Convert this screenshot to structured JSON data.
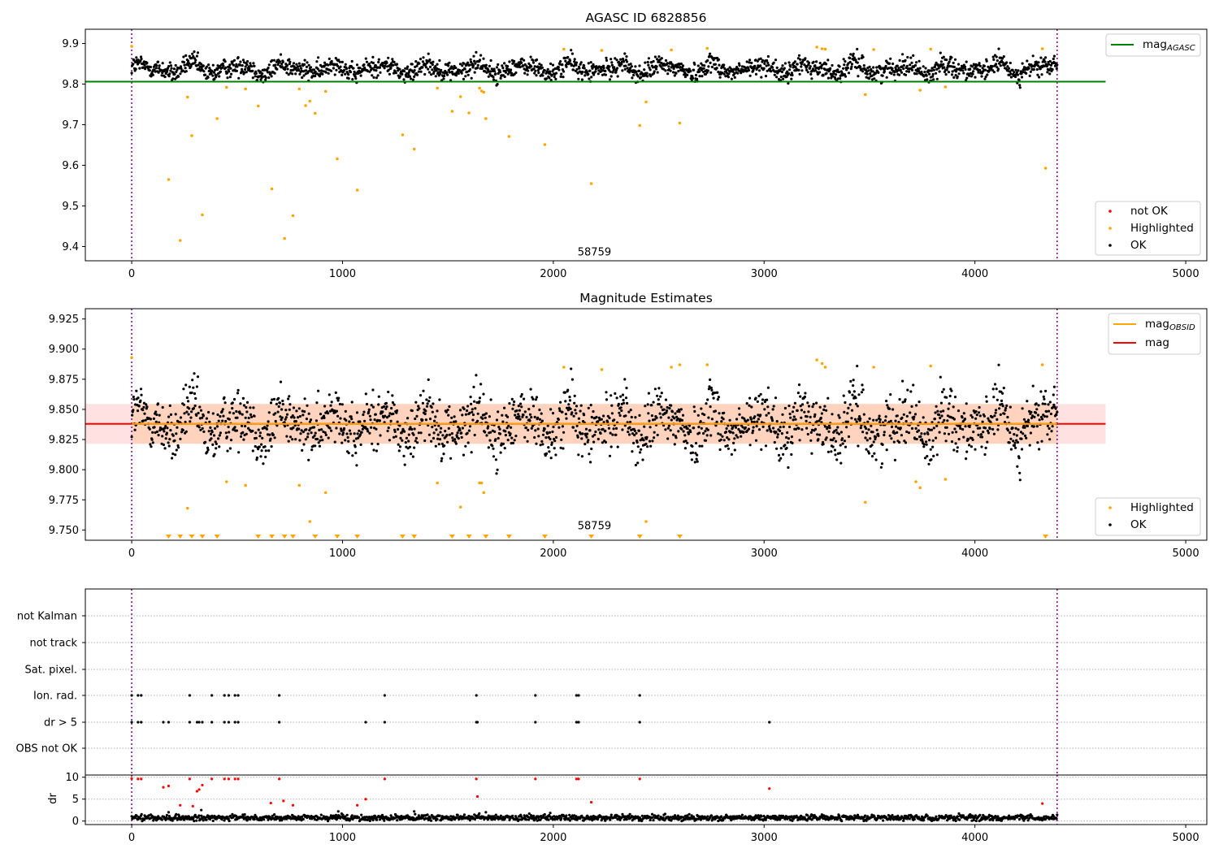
{
  "figure": {
    "colors": {
      "ok": "#000000",
      "highlighted": "#ffa500",
      "not_ok": "#ff0000",
      "agasc_line": "#008000",
      "mag_line": "#ff0000",
      "obs_line": "#ffa500",
      "band_mag": "#ffaaaa",
      "band_obs": "#ffc8a0",
      "obs_boundary": "#800080"
    },
    "obs_boundaries_x": [
      0,
      4390
    ],
    "obs_label": "58759"
  },
  "chart_data": [
    {
      "id": "top",
      "type": "scatter",
      "title": "AGASC ID 6828856",
      "xlim": [
        -220,
        5100
      ],
      "ylim": [
        9.365,
        9.935
      ],
      "xticks": [
        0,
        1000,
        2000,
        3000,
        4000,
        5000
      ],
      "yticks": [
        9.4,
        9.5,
        9.6,
        9.7,
        9.8,
        9.9
      ],
      "ytick_labels": [
        "9.4",
        "9.5",
        "9.6",
        "9.7",
        "9.8",
        "9.9"
      ],
      "lines": [
        {
          "name": "mag_AGASC",
          "label_base": "mag",
          "label_sub": "AGASC",
          "y": 9.806,
          "x_range": [
            -220,
            4620
          ],
          "color": "#008000"
        }
      ],
      "series": [
        {
          "name": "not OK",
          "color": "#ff0000",
          "points": []
        },
        {
          "name": "Highlighted",
          "color": "#ffa500",
          "points": [
            [
              0,
              9.893
            ],
            [
              175,
              9.565
            ],
            [
              230,
              9.415
            ],
            [
              265,
              9.768
            ],
            [
              285,
              9.673
            ],
            [
              335,
              9.478
            ],
            [
              405,
              9.715
            ],
            [
              450,
              9.792
            ],
            [
              540,
              9.788
            ],
            [
              600,
              9.746
            ],
            [
              665,
              9.542
            ],
            [
              725,
              9.42
            ],
            [
              765,
              9.476
            ],
            [
              795,
              9.788
            ],
            [
              825,
              9.747
            ],
            [
              845,
              9.758
            ],
            [
              870,
              9.728
            ],
            [
              920,
              9.782
            ],
            [
              975,
              9.616
            ],
            [
              1070,
              9.539
            ],
            [
              1285,
              9.675
            ],
            [
              1340,
              9.64
            ],
            [
              1450,
              9.79
            ],
            [
              1520,
              9.733
            ],
            [
              1560,
              9.769
            ],
            [
              1600,
              9.729
            ],
            [
              1650,
              9.79
            ],
            [
              1660,
              9.783
            ],
            [
              1670,
              9.78
            ],
            [
              1680,
              9.715
            ],
            [
              1790,
              9.671
            ],
            [
              1960,
              9.651
            ],
            [
              2050,
              9.886
            ],
            [
              2180,
              9.555
            ],
            [
              2230,
              9.883
            ],
            [
              2410,
              9.698
            ],
            [
              2440,
              9.756
            ],
            [
              2560,
              9.884
            ],
            [
              2600,
              9.704
            ],
            [
              2730,
              9.888
            ],
            [
              3250,
              9.891
            ],
            [
              3275,
              9.887
            ],
            [
              3290,
              9.886
            ],
            [
              3480,
              9.774
            ],
            [
              3520,
              9.885
            ],
            [
              3740,
              9.785
            ],
            [
              3790,
              9.886
            ],
            [
              3860,
              9.793
            ],
            [
              4320,
              9.887
            ],
            [
              4335,
              9.593
            ]
          ]
        },
        {
          "name": "OK",
          "color": "#000000",
          "points": []
        }
      ],
      "ok_trace": {
        "x_range": [
          0,
          4390
        ],
        "count": 2000,
        "baseline": 9.838,
        "wave_amplitude": 0.016,
        "noise": 0.012,
        "note_reading": "dense band of OK points between about 9.80 and 9.88"
      },
      "annotations": [
        {
          "text": "58759",
          "x": 2195,
          "y": 9.378
        }
      ],
      "legends": [
        {
          "entries": [
            "mag_AGASC"
          ],
          "placement": "top-right"
        },
        {
          "entries": [
            "not OK",
            "Highlighted",
            "OK"
          ],
          "placement": "bottom-right"
        }
      ]
    },
    {
      "id": "middle",
      "type": "scatter",
      "title": "Magnitude Estimates",
      "xlim": [
        -220,
        5100
      ],
      "ylim": [
        9.7415,
        9.9335
      ],
      "xticks": [
        0,
        1000,
        2000,
        3000,
        4000,
        5000
      ],
      "yticks": [
        9.75,
        9.775,
        9.8,
        9.825,
        9.85,
        9.875,
        9.9,
        9.925
      ],
      "ytick_labels": [
        "9.750",
        "9.775",
        "9.800",
        "9.825",
        "9.850",
        "9.875",
        "9.900",
        "9.925"
      ],
      "lines": [
        {
          "name": "mag_OBSID",
          "label_base": "mag",
          "label_sub": "OBSID",
          "y": 9.838,
          "x_range": [
            0,
            4390
          ],
          "color": "#ffa500"
        },
        {
          "name": "mag",
          "label_base": "mag",
          "label_sub": "",
          "y": 9.838,
          "x_range": [
            -220,
            4620
          ],
          "color": "#ff0000"
        }
      ],
      "bands": [
        {
          "y_range": [
            9.8215,
            9.8545
          ],
          "x_range": [
            -220,
            4620
          ],
          "color": "#ffaaaa",
          "opacity": 0.35
        },
        {
          "y_range": [
            9.8215,
            9.8545
          ],
          "x_range": [
            0,
            4390
          ],
          "color": "#ffc8a0",
          "opacity": 0.55
        }
      ],
      "series": [
        {
          "name": "Highlighted",
          "color": "#ffa500",
          "points": [
            [
              0,
              9.893
            ],
            [
              265,
              9.768
            ],
            [
              450,
              9.79
            ],
            [
              540,
              9.787
            ],
            [
              795,
              9.787
            ],
            [
              845,
              9.757
            ],
            [
              920,
              9.781
            ],
            [
              1450,
              9.789
            ],
            [
              1560,
              9.769
            ],
            [
              1650,
              9.789
            ],
            [
              1660,
              9.789
            ],
            [
              1670,
              9.781
            ],
            [
              2050,
              9.885
            ],
            [
              2230,
              9.883
            ],
            [
              2440,
              9.757
            ],
            [
              2560,
              9.885
            ],
            [
              2600,
              9.887
            ],
            [
              2730,
              9.887
            ],
            [
              3250,
              9.891
            ],
            [
              3275,
              9.888
            ],
            [
              3290,
              9.885
            ],
            [
              3480,
              9.773
            ],
            [
              3520,
              9.885
            ],
            [
              3720,
              9.79
            ],
            [
              3740,
              9.785
            ],
            [
              3790,
              9.886
            ],
            [
              3860,
              9.792
            ],
            [
              4320,
              9.887
            ]
          ]
        },
        {
          "name": "OK",
          "color": "#000000",
          "points": []
        }
      ],
      "clipped_below_x": [
        175,
        230,
        285,
        335,
        405,
        600,
        665,
        725,
        765,
        870,
        975,
        1070,
        1285,
        1340,
        1520,
        1600,
        1680,
        1790,
        1960,
        2180,
        2410,
        2600,
        4335
      ],
      "ok_trace": {
        "x_range": [
          0,
          4390
        ],
        "count": 2000,
        "baseline": 9.838,
        "wave_amplitude": 0.016,
        "noise": 0.012,
        "note_reading": "OK points spread between about 9.79 and 9.88"
      },
      "annotations": [
        {
          "text": "58759",
          "x": 2195,
          "y": 9.7505
        }
      ],
      "legends": [
        {
          "entries": [
            "mag_OBSID",
            "mag"
          ],
          "placement": "top-right"
        },
        {
          "entries": [
            "Highlighted",
            "OK"
          ],
          "placement": "bottom-right"
        }
      ]
    },
    {
      "id": "flags",
      "type": "scatter",
      "xlim": [
        -220,
        5100
      ],
      "categories": [
        "not Kalman",
        "not track",
        "Sat. pixel.",
        "Ion. rad.",
        "dr > 5",
        "OBS not OK"
      ],
      "grid": true,
      "flag_points": {
        "Ion. rad.": [
          0,
          30,
          45,
          275,
          380,
          440,
          460,
          490,
          505,
          700,
          1200,
          1635,
          1915,
          2110,
          2120,
          2410
        ],
        "dr > 5": [
          0,
          30,
          45,
          150,
          175,
          275,
          310,
          320,
          335,
          380,
          440,
          460,
          490,
          505,
          700,
          1110,
          1200,
          1635,
          1640,
          1915,
          2110,
          2120,
          2410,
          3025
        ]
      }
    },
    {
      "id": "dr",
      "type": "scatter",
      "ylabel": "dr",
      "xlim": [
        -220,
        5100
      ],
      "ylim": [
        -0.8,
        10.5
      ],
      "xticks": [
        0,
        1000,
        2000,
        3000,
        4000,
        5000
      ],
      "yticks": [
        0,
        5,
        10
      ],
      "ytick_labels": [
        "0",
        "5",
        "10"
      ],
      "grid": true,
      "series": [
        {
          "name": "not OK",
          "color": "#ff0000",
          "points": [
            [
              0,
              9.7
            ],
            [
              30,
              9.6
            ],
            [
              45,
              9.6
            ],
            [
              150,
              7.7
            ],
            [
              175,
              8.0
            ],
            [
              230,
              3.6
            ],
            [
              275,
              9.6
            ],
            [
              290,
              3.4
            ],
            [
              310,
              6.8
            ],
            [
              320,
              7.2
            ],
            [
              335,
              8.2
            ],
            [
              380,
              9.6
            ],
            [
              440,
              9.6
            ],
            [
              460,
              9.6
            ],
            [
              490,
              9.6
            ],
            [
              505,
              9.6
            ],
            [
              660,
              4.1
            ],
            [
              700,
              9.6
            ],
            [
              720,
              4.6
            ],
            [
              765,
              3.6
            ],
            [
              1070,
              3.6
            ],
            [
              1110,
              5.0
            ],
            [
              1200,
              9.6
            ],
            [
              1635,
              9.6
            ],
            [
              1640,
              5.6
            ],
            [
              1915,
              9.6
            ],
            [
              2110,
              9.6
            ],
            [
              2120,
              9.6
            ],
            [
              2180,
              4.3
            ],
            [
              2410,
              9.6
            ],
            [
              3025,
              7.4
            ],
            [
              4320,
              4.0
            ]
          ]
        },
        {
          "name": "OK",
          "color": "#000000",
          "points": [
            [
              175,
              2.0
            ],
            [
              330,
              2.5
            ],
            [
              980,
              2.2
            ],
            [
              1340,
              2.2
            ],
            [
              1680,
              2.0
            ]
          ]
        }
      ],
      "ok_trace": {
        "x_range": [
          0,
          4390
        ],
        "count": 1500,
        "baseline": 0.75,
        "noise": 0.35,
        "note_reading": "dense band of OK points near dr 0 to 1.5"
      }
    }
  ]
}
